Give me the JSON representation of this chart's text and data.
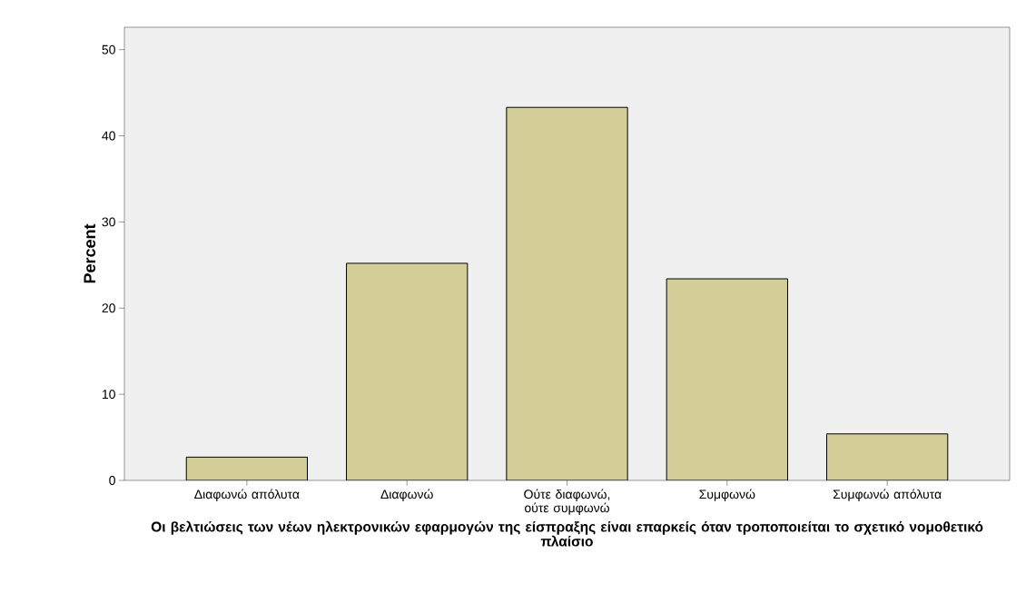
{
  "chart_data": {
    "type": "bar",
    "categories": [
      "Διαφωνώ απόλυτα",
      "Διαφωνώ",
      "Ούτε διαφωνώ, ούτε συμφωνώ",
      "Συμφωνώ",
      "Συμφωνώ απόλυτα"
    ],
    "values": [
      2.7,
      25.2,
      43.3,
      23.4,
      5.4
    ],
    "color": "#d3ce97",
    "ylabel": "Percent",
    "xlabel": "Οι βελτιώσεις των νέων ηλεκτρονικών εφαρμογών της είσπραξης είναι επαρκείς όταν τροποποιείται το σχετικό νομοθετικό πλαίσιο",
    "ylim": [
      0,
      52.6
    ],
    "yticks": [
      0,
      10,
      20,
      30,
      40,
      50
    ]
  }
}
